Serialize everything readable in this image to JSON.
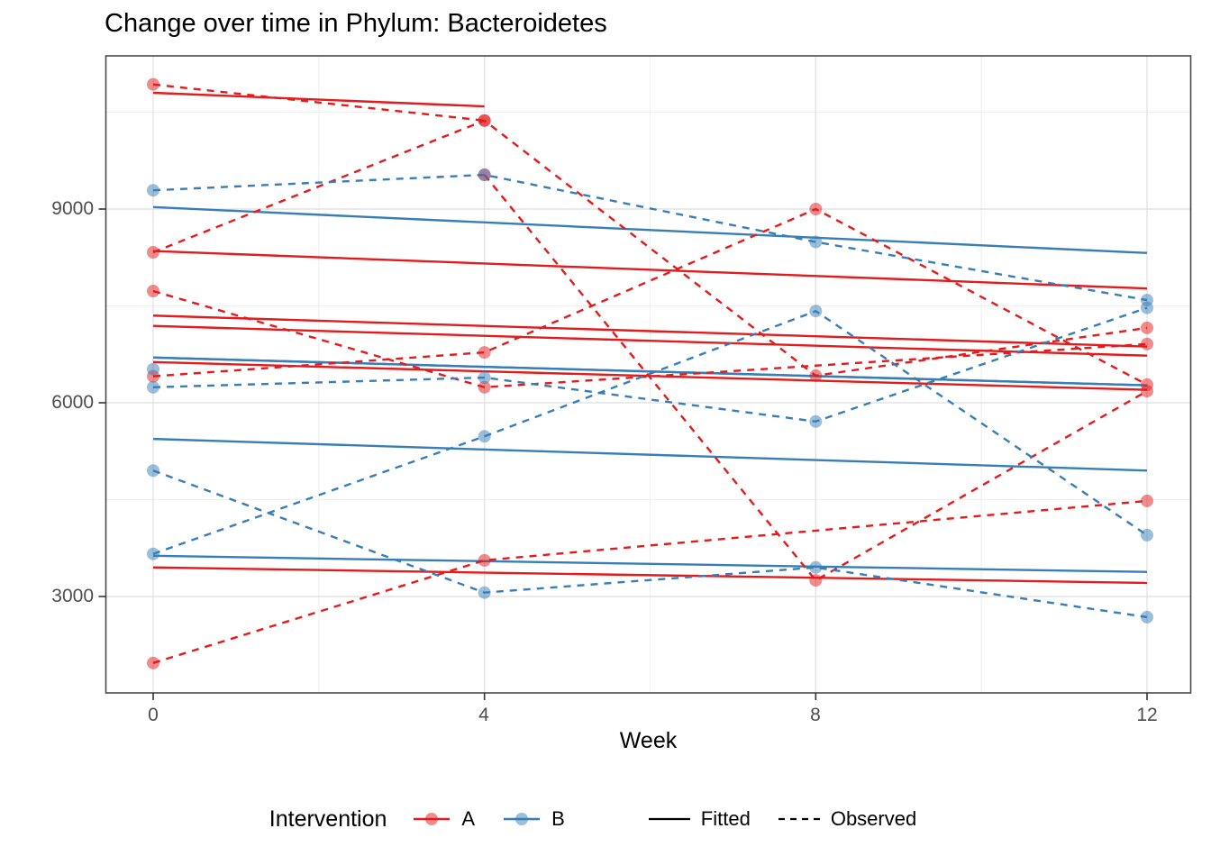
{
  "title": "Change over time in Phylum: Bacteroidetes",
  "axes": {
    "x": {
      "label": "Week",
      "ticks": [
        "0",
        "4",
        "8",
        "12"
      ],
      "tick_values": [
        0,
        4,
        8,
        12
      ]
    },
    "y": {
      "ticks": [
        "3000",
        "6000",
        "9000"
      ],
      "tick_values": [
        3000,
        6000,
        9000
      ]
    }
  },
  "legend": {
    "title": "Intervention",
    "group_items": [
      {
        "label": "A",
        "color": "#E41A1C"
      },
      {
        "label": "B",
        "color": "#377EB8"
      }
    ],
    "linetype_items": [
      {
        "label": "Fitted",
        "style": "solid"
      },
      {
        "label": "Observed",
        "style": "dashed"
      }
    ]
  },
  "chart_data": {
    "type": "line",
    "title": "Change over time in Phylum: Bacteroidetes",
    "xlabel": "Week",
    "ylabel": "",
    "x_ticks": [
      0,
      4,
      8,
      12
    ],
    "y_ticks": [
      3000,
      6000,
      9000
    ],
    "y_minor_ticks": [
      4500,
      7500,
      10500
    ],
    "x_minor_ticks": [
      2,
      6,
      10
    ],
    "xlim": [
      -0.6,
      12.5
    ],
    "ylim": [
      1500,
      11370
    ],
    "grid": true,
    "legend_position": "bottom",
    "groups": {
      "A": "#E41A1C",
      "B": "#377EB8"
    },
    "linetypes": {
      "Fitted": "solid",
      "Observed": "dashed"
    },
    "point_alpha": 0.5,
    "subjects": [
      {
        "id": "A1",
        "group": "A",
        "observed": {
          "weeks": [
            0,
            4
          ],
          "values": [
            10930,
            10370
          ]
        },
        "fitted": {
          "weeks": [
            0,
            4
          ],
          "values": [
            10800,
            10590
          ]
        }
      },
      {
        "id": "A2",
        "group": "A",
        "observed": {
          "weeks": [
            0,
            4,
            8,
            12
          ],
          "values": [
            8330,
            10370,
            6420,
            7160
          ]
        },
        "fitted": {
          "weeks": [
            0,
            12
          ],
          "values": [
            8350,
            7770
          ]
        }
      },
      {
        "id": "A3",
        "group": "A",
        "observed": {
          "weeks": [
            0,
            4,
            12
          ],
          "values": [
            7730,
            6240,
            6910
          ]
        },
        "fitted": {
          "weeks": [
            0,
            12
          ],
          "values": [
            7350,
            6870
          ]
        }
      },
      {
        "id": "A4",
        "group": "A",
        "observed": {
          "weeks": [
            0,
            4,
            8,
            12
          ],
          "values": [
            6410,
            6780,
            9000,
            6280
          ]
        },
        "fitted": {
          "weeks": [
            0,
            12
          ],
          "values": [
            7190,
            6730
          ]
        }
      },
      {
        "id": "A5",
        "group": "A",
        "observed": {
          "weeks": [
            4,
            8,
            12
          ],
          "values": [
            9530,
            3250,
            6180
          ]
        },
        "fitted": {
          "weeks": [
            0,
            12
          ],
          "values": [
            6630,
            6200
          ]
        }
      },
      {
        "id": "A6",
        "group": "A",
        "observed": {
          "weeks": [
            0,
            4,
            12
          ],
          "values": [
            1970,
            3560,
            4480
          ]
        },
        "fitted": {
          "weeks": [
            0,
            12
          ],
          "values": [
            3450,
            3210
          ]
        }
      },
      {
        "id": "B1",
        "group": "B",
        "observed": {
          "weeks": [
            0,
            4,
            8,
            12
          ],
          "values": [
            9290,
            9530,
            8490,
            7590
          ]
        },
        "fitted": {
          "weeks": [
            0,
            12
          ],
          "values": [
            9030,
            8320
          ]
        }
      },
      {
        "id": "B2",
        "group": "B",
        "observed": {
          "weeks": [
            0,
            4,
            8,
            12
          ],
          "values": [
            6240,
            6390,
            5710,
            7470
          ]
        },
        "fitted": {
          "weeks": [
            0,
            12
          ],
          "values": [
            6700,
            6270
          ]
        }
      },
      {
        "id": "B3",
        "group": "B",
        "observed": {
          "weeks": [
            0
          ],
          "values": [
            6520
          ]
        },
        "fitted": {
          "weeks": [
            0,
            12
          ],
          "values": [
            6700,
            6270
          ]
        }
      },
      {
        "id": "B4",
        "group": "B",
        "observed": {
          "weeks": [
            0,
            4,
            8,
            12
          ],
          "values": [
            4950,
            3060,
            3450,
            2680
          ]
        },
        "fitted": {
          "weeks": [
            0,
            12
          ],
          "values": [
            5440,
            4950
          ]
        }
      },
      {
        "id": "B5",
        "group": "B",
        "observed": {
          "weeks": [
            0,
            4,
            8,
            12
          ],
          "values": [
            3660,
            5480,
            7420,
            3950
          ]
        },
        "fitted": {
          "weeks": [
            0,
            12
          ],
          "values": [
            3630,
            3380
          ]
        }
      }
    ]
  }
}
